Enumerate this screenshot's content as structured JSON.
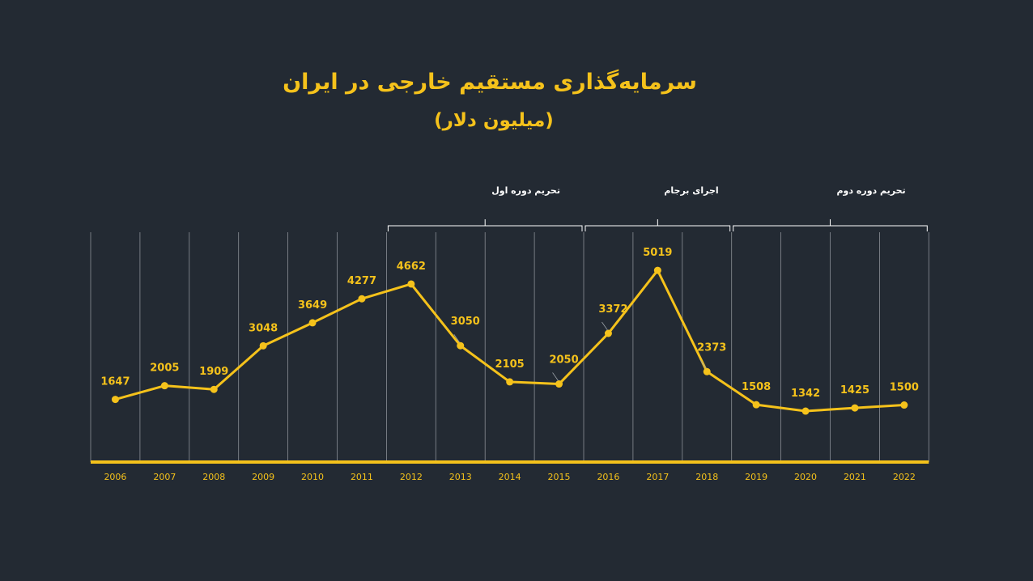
{
  "chart_data": {
    "type": "line",
    "title": "سرمایه‌گذاری مستقیم خارجی در ایران",
    "subtitle": "(میلیون دلار)",
    "xlabel": "",
    "ylabel": "",
    "ylim": [
      0,
      5500
    ],
    "grid": "vertical",
    "colors": {
      "line": "#f5c21b",
      "background": "#232a33",
      "grid": "#8a8f96",
      "bracket": "#ffffff"
    },
    "x": [
      "2006",
      "2007",
      "2008",
      "2009",
      "2010",
      "2011",
      "2012",
      "2013",
      "2014",
      "2015",
      "2016",
      "2017",
      "2018",
      "2019",
      "2020",
      "2021",
      "2022"
    ],
    "values": [
      1647,
      2005,
      1909,
      3048,
      3649,
      4277,
      4662,
      3050,
      2105,
      2050,
      3372,
      5019,
      2373,
      1508,
      1342,
      1425,
      1500
    ],
    "annotations": [
      {
        "label": "تحریم دوره اول",
        "from": "2012",
        "to": "2015"
      },
      {
        "label": "اجرای برجام",
        "from": "2016",
        "to": "2018"
      },
      {
        "label": "تحریم دوره دوم",
        "from": "2019",
        "to": "2022"
      }
    ]
  }
}
